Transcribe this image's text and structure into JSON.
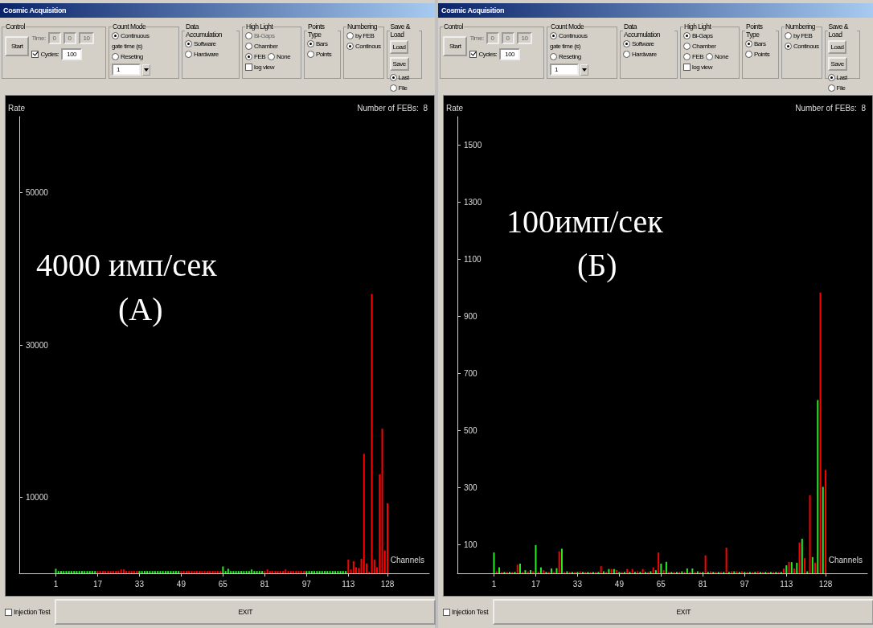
{
  "chart_data": [
    {
      "type": "bar",
      "xlabel": "Channels",
      "ylabel": "Rate",
      "xlim": [
        -13,
        144
      ],
      "ylim": [
        0,
        60000
      ],
      "xticks": [
        1,
        17,
        33,
        49,
        65,
        81,
        97,
        113,
        128
      ],
      "yticks": [
        10000,
        30000,
        50000
      ],
      "grid": false,
      "x": [
        1,
        2,
        3,
        4,
        5,
        6,
        7,
        8,
        9,
        10,
        11,
        12,
        13,
        14,
        15,
        16,
        17,
        18,
        19,
        20,
        21,
        22,
        23,
        24,
        25,
        26,
        27,
        28,
        29,
        30,
        31,
        32,
        33,
        34,
        35,
        36,
        37,
        38,
        39,
        40,
        41,
        42,
        43,
        44,
        45,
        46,
        47,
        48,
        49,
        50,
        51,
        52,
        53,
        54,
        55,
        56,
        57,
        58,
        59,
        60,
        61,
        62,
        63,
        64,
        65,
        66,
        67,
        68,
        69,
        70,
        71,
        72,
        73,
        74,
        75,
        76,
        77,
        78,
        79,
        80,
        81,
        82,
        83,
        84,
        85,
        86,
        87,
        88,
        89,
        90,
        91,
        92,
        93,
        94,
        95,
        96,
        97,
        98,
        99,
        100,
        101,
        102,
        103,
        104,
        105,
        106,
        107,
        108,
        109,
        110,
        111,
        112,
        113,
        114,
        115,
        116,
        117,
        118,
        119,
        120,
        121,
        122,
        123,
        124,
        125,
        126,
        127,
        128
      ],
      "values": [
        600,
        300,
        300,
        300,
        300,
        300,
        300,
        300,
        300,
        300,
        300,
        300,
        300,
        300,
        300,
        300,
        300,
        300,
        300,
        300,
        300,
        300,
        300,
        300,
        300,
        500,
        500,
        300,
        300,
        300,
        300,
        300,
        300,
        300,
        300,
        300,
        300,
        300,
        300,
        300,
        300,
        300,
        300,
        300,
        300,
        300,
        300,
        300,
        300,
        300,
        300,
        300,
        300,
        300,
        300,
        300,
        300,
        300,
        300,
        300,
        300,
        300,
        300,
        300,
        900,
        300,
        600,
        300,
        300,
        300,
        300,
        300,
        300,
        300,
        300,
        500,
        300,
        300,
        300,
        300,
        300,
        500,
        300,
        300,
        300,
        300,
        300,
        300,
        500,
        300,
        300,
        300,
        300,
        300,
        300,
        300,
        300,
        300,
        300,
        300,
        300,
        300,
        300,
        300,
        300,
        300,
        300,
        300,
        300,
        300,
        300,
        300,
        1800,
        500,
        1600,
        800,
        700,
        1900,
        15700,
        1300,
        200,
        36700,
        1800,
        800,
        13000,
        19000,
        3000,
        9200
      ],
      "colors": [
        "#22ee22",
        "#22ee22",
        "#22ee22",
        "#22ee22",
        "#22ee22",
        "#22ee22",
        "#22ee22",
        "#22ee22",
        "#22ee22",
        "#22ee22",
        "#22ee22",
        "#22ee22",
        "#22ee22",
        "#22ee22",
        "#22ee22",
        "#22ee22",
        "#ff0000",
        "#ff0000",
        "#ff0000",
        "#ff0000",
        "#ff0000",
        "#ff0000",
        "#ff0000",
        "#ff0000",
        "#ff0000",
        "#ff0000",
        "#ff0000",
        "#ff0000",
        "#ff0000",
        "#ff0000",
        "#ff0000",
        "#ff0000",
        "#22ee22",
        "#22ee22",
        "#22ee22",
        "#22ee22",
        "#22ee22",
        "#22ee22",
        "#22ee22",
        "#22ee22",
        "#22ee22",
        "#22ee22",
        "#22ee22",
        "#22ee22",
        "#22ee22",
        "#22ee22",
        "#22ee22",
        "#22ee22",
        "#ff0000",
        "#ff0000",
        "#ff0000",
        "#ff0000",
        "#ff0000",
        "#ff0000",
        "#ff0000",
        "#ff0000",
        "#ff0000",
        "#ff0000",
        "#ff0000",
        "#ff0000",
        "#ff0000",
        "#ff0000",
        "#ff0000",
        "#ff0000",
        "#22ee22",
        "#22ee22",
        "#22ee22",
        "#22ee22",
        "#22ee22",
        "#22ee22",
        "#22ee22",
        "#22ee22",
        "#22ee22",
        "#22ee22",
        "#22ee22",
        "#22ee22",
        "#22ee22",
        "#22ee22",
        "#22ee22",
        "#22ee22",
        "#ff0000",
        "#ff0000",
        "#ff0000",
        "#ff0000",
        "#ff0000",
        "#ff0000",
        "#ff0000",
        "#ff0000",
        "#ff0000",
        "#ff0000",
        "#ff0000",
        "#ff0000",
        "#ff0000",
        "#ff0000",
        "#ff0000",
        "#ff0000",
        "#22ee22",
        "#22ee22",
        "#22ee22",
        "#22ee22",
        "#22ee22",
        "#22ee22",
        "#22ee22",
        "#22ee22",
        "#22ee22",
        "#22ee22",
        "#22ee22",
        "#22ee22",
        "#22ee22",
        "#22ee22",
        "#22ee22",
        "#22ee22",
        "#ff0000",
        "#ff0000",
        "#ff0000",
        "#ff0000",
        "#ff0000",
        "#ff0000",
        "#ff0000",
        "#ff0000",
        "#ff0000",
        "#ff0000",
        "#ff0000",
        "#ff0000",
        "#ff0000",
        "#ff0000",
        "#ff0000",
        "#ff0000"
      ],
      "annotations": [
        "Cosmic Acquisition",
        "Control",
        "Start",
        "Time:",
        "0",
        "0",
        "10",
        "Cycles:",
        "100",
        "Count Mode",
        "Continuous",
        "Reseting",
        "gate time (s)",
        "1",
        "Data Accumulation",
        "Software",
        "Hardware",
        "High Light",
        "Bi-Gaps",
        "Chamber",
        "FEB",
        "None",
        "log view",
        "Points Type",
        "Bars",
        "Points",
        "Numbering",
        "by FEB",
        "Continous",
        "Save & Load",
        "Load",
        "Save",
        "Last",
        "File",
        "Number of FEBs:  8",
        "Injection Test",
        "EXIT",
        "4000 имп/сек",
        "(А)"
      ]
    },
    {
      "type": "bar",
      "xlabel": "Channels",
      "ylabel": "Rate",
      "xlim": [
        -13,
        144
      ],
      "ylim": [
        0,
        1600
      ],
      "xticks": [
        1,
        17,
        33,
        49,
        65,
        81,
        97,
        113,
        128
      ],
      "yticks": [
        100,
        300,
        500,
        700,
        900,
        1100,
        1300,
        1500
      ],
      "grid": false,
      "x": [
        1,
        2,
        3,
        4,
        5,
        6,
        7,
        8,
        9,
        10,
        11,
        12,
        13,
        14,
        15,
        16,
        17,
        18,
        19,
        20,
        21,
        22,
        23,
        24,
        25,
        26,
        27,
        28,
        29,
        30,
        31,
        32,
        33,
        34,
        35,
        36,
        37,
        38,
        39,
        40,
        41,
        42,
        43,
        44,
        45,
        46,
        47,
        48,
        49,
        50,
        51,
        52,
        53,
        54,
        55,
        56,
        57,
        58,
        59,
        60,
        61,
        62,
        63,
        64,
        65,
        66,
        67,
        68,
        69,
        70,
        71,
        72,
        73,
        74,
        75,
        76,
        77,
        78,
        79,
        80,
        81,
        82,
        83,
        84,
        85,
        86,
        87,
        88,
        89,
        90,
        91,
        92,
        93,
        94,
        95,
        96,
        97,
        98,
        99,
        100,
        101,
        102,
        103,
        104,
        105,
        106,
        107,
        108,
        109,
        110,
        111,
        112,
        113,
        114,
        115,
        116,
        117,
        118,
        119,
        120,
        121,
        122,
        123,
        124,
        125,
        126,
        127,
        128
      ],
      "values": [
        73,
        7,
        21,
        5,
        5,
        5,
        5,
        5,
        5,
        30,
        34,
        5,
        11,
        6,
        11,
        7,
        99,
        5,
        21,
        11,
        5,
        5,
        17,
        5,
        18,
        77,
        86,
        5,
        7,
        5,
        5,
        5,
        5,
        7,
        5,
        5,
        5,
        5,
        5,
        5,
        5,
        25,
        7,
        5,
        15,
        15,
        15,
        11,
        5,
        5,
        5,
        15,
        5,
        15,
        5,
        7,
        5,
        15,
        5,
        5,
        7,
        21,
        11,
        73,
        34,
        11,
        40,
        5,
        5,
        5,
        5,
        5,
        7,
        5,
        17,
        5,
        17,
        5,
        7,
        5,
        5,
        63,
        5,
        7,
        5,
        5,
        5,
        5,
        5,
        90,
        5,
        7,
        7,
        7,
        5,
        7,
        5,
        5,
        5,
        5,
        5,
        7,
        5,
        5,
        5,
        5,
        5,
        5,
        5,
        5,
        5,
        17,
        28,
        40,
        39,
        17,
        37,
        108,
        121,
        53,
        7,
        273,
        57,
        37,
        607,
        984,
        303,
        362
      ],
      "colors": [
        "#22ee22",
        "#ff0000",
        "#22ee22",
        "#ff0000",
        "#22ee22",
        "#ff0000",
        "#22ee22",
        "#ff0000",
        "#22ee22",
        "#ff0000",
        "#22ee22",
        "#ff0000",
        "#22ee22",
        "#ff0000",
        "#22ee22",
        "#ff0000",
        "#22ee22",
        "#ff0000",
        "#22ee22",
        "#ff0000",
        "#22ee22",
        "#ff0000",
        "#22ee22",
        "#ff0000",
        "#22ee22",
        "#ff0000",
        "#22ee22",
        "#ff0000",
        "#22ee22",
        "#ff0000",
        "#22ee22",
        "#ff0000",
        "#22ee22",
        "#ff0000",
        "#22ee22",
        "#ff0000",
        "#22ee22",
        "#ff0000",
        "#22ee22",
        "#ff0000",
        "#22ee22",
        "#ff0000",
        "#22ee22",
        "#ff0000",
        "#22ee22",
        "#ff0000",
        "#22ee22",
        "#ff0000",
        "#22ee22",
        "#ff0000",
        "#22ee22",
        "#ff0000",
        "#22ee22",
        "#ff0000",
        "#22ee22",
        "#ff0000",
        "#22ee22",
        "#ff0000",
        "#22ee22",
        "#ff0000",
        "#22ee22",
        "#ff0000",
        "#22ee22",
        "#ff0000",
        "#22ee22",
        "#ff0000",
        "#22ee22",
        "#ff0000",
        "#22ee22",
        "#ff0000",
        "#22ee22",
        "#ff0000",
        "#22ee22",
        "#ff0000",
        "#22ee22",
        "#ff0000",
        "#22ee22",
        "#ff0000",
        "#22ee22",
        "#ff0000",
        "#22ee22",
        "#ff0000",
        "#22ee22",
        "#ff0000",
        "#22ee22",
        "#ff0000",
        "#22ee22",
        "#ff0000",
        "#22ee22",
        "#ff0000",
        "#22ee22",
        "#ff0000",
        "#22ee22",
        "#ff0000",
        "#22ee22",
        "#ff0000",
        "#22ee22",
        "#ff0000",
        "#22ee22",
        "#ff0000",
        "#22ee22",
        "#ff0000",
        "#22ee22",
        "#ff0000",
        "#22ee22",
        "#ff0000",
        "#22ee22",
        "#ff0000",
        "#22ee22",
        "#ff0000",
        "#22ee22",
        "#ff0000",
        "#22ee22",
        "#ff0000",
        "#22ee22",
        "#ff0000",
        "#22ee22",
        "#ff0000",
        "#22ee22",
        "#ff0000",
        "#22ee22",
        "#ff0000",
        "#22ee22",
        "#ff0000",
        "#22ee22",
        "#ff0000",
        "#22ee22",
        "#ff0000"
      ],
      "annotations": [
        "Cosmic Acquisition",
        "Control",
        "Start",
        "Time:",
        "0",
        "0",
        "10",
        "Cycles:",
        "100",
        "Count Mode",
        "Continuous",
        "Reseting",
        "gate time (s)",
        "1",
        "Data Accumulation",
        "Software",
        "Hardware",
        "High Light",
        "Bi-Gaps",
        "Chamber",
        "FEB",
        "None",
        "log view",
        "Points Type",
        "Bars",
        "Points",
        "Numbering",
        "by FEB",
        "Continous",
        "Save & Load",
        "Load",
        "Save",
        "Last",
        "File",
        "Number of FEBs:  8",
        "Injection Test",
        "EXIT",
        "100имп/сек",
        "(Б)"
      ]
    }
  ]
}
